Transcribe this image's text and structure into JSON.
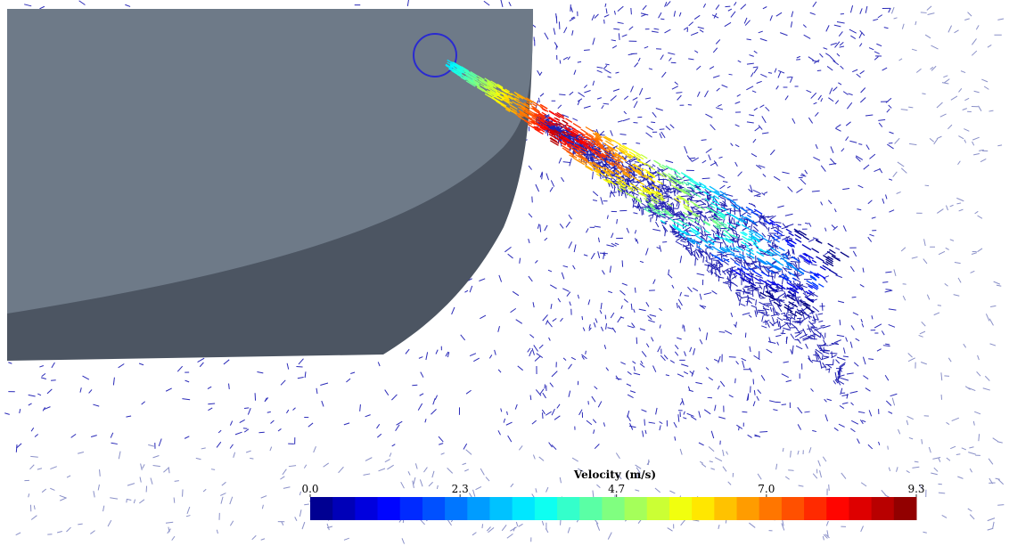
{
  "colorbar": {
    "title": "Velocity (m/s)",
    "range": [
      0,
      9.3
    ],
    "ticks": [
      {
        "value": 0,
        "label": "0.0"
      },
      {
        "value": 2.3,
        "label": "2.3"
      },
      {
        "value": 4.7,
        "label": "4.7"
      },
      {
        "value": 7,
        "label": "7.0"
      },
      {
        "value": 9.3,
        "label": "9.3"
      }
    ]
  }
}
